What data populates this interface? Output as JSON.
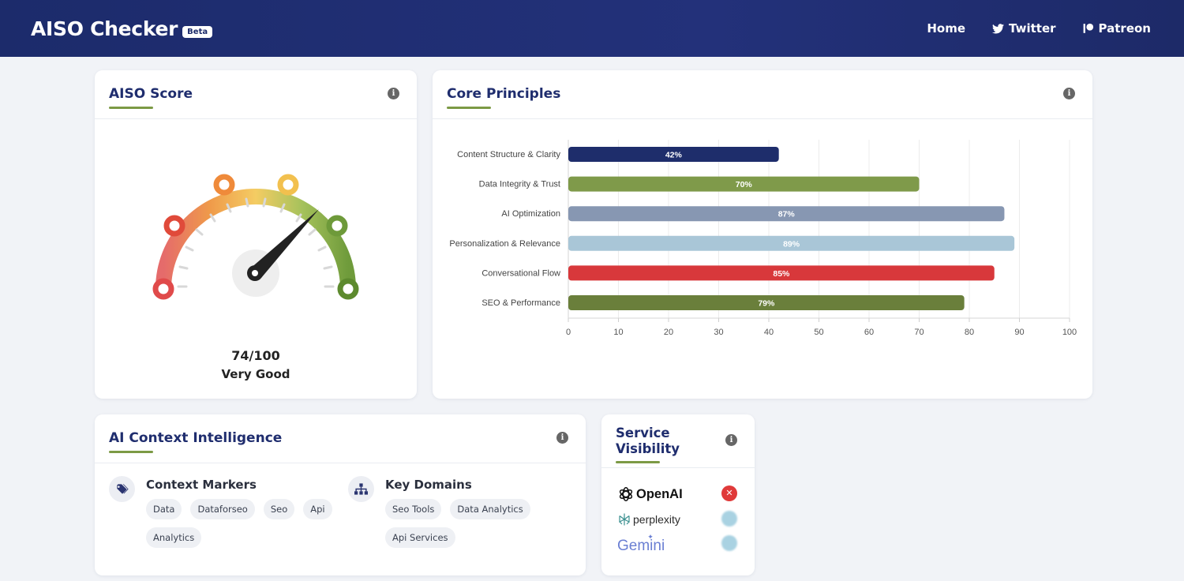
{
  "nav": {
    "brand": "AISO Checker",
    "badge": "Beta",
    "links": [
      {
        "label": "Home",
        "icon": "none"
      },
      {
        "label": "Twitter",
        "icon": "twitter-icon"
      },
      {
        "label": "Patreon",
        "icon": "patreon-icon"
      }
    ]
  },
  "score_card": {
    "title": "AISO Score",
    "info_icon": "i",
    "score_text": "74/100",
    "rating": "Very Good",
    "score_value": 74,
    "score_max": 100
  },
  "principles_card": {
    "title": "Core Principles",
    "info_icon": "i"
  },
  "chart_data": {
    "type": "bar",
    "orientation": "horizontal",
    "categories": [
      "Content Structure & Clarity",
      "Data Integrity & Trust",
      "AI Optimization",
      "Personalization & Relevance",
      "Conversational Flow",
      "SEO & Performance"
    ],
    "values": [
      42,
      70,
      87,
      89,
      85,
      79
    ],
    "value_labels": [
      "42%",
      "70%",
      "87%",
      "89%",
      "85%",
      "79%"
    ],
    "colors": [
      "#1e2d6b",
      "#7f9a4a",
      "#8797b2",
      "#a9c6d7",
      "#d8383b",
      "#6a7f3b"
    ],
    "xlim": [
      0,
      100
    ],
    "xticks": [
      "0",
      "10",
      "20",
      "30",
      "40",
      "50",
      "60",
      "70",
      "80",
      "90",
      "100"
    ],
    "grid": true
  },
  "context_card": {
    "title": "AI Context Intelligence",
    "info_icon": "i",
    "markers_title": "Context Markers",
    "markers_icon": "tag-icon",
    "markers": [
      "Data",
      "Dataforseo",
      "Seo",
      "Api",
      "Analytics"
    ],
    "domains_title": "Key Domains",
    "domains_icon": "hierarchy-icon",
    "domains": [
      "Seo Tools",
      "Data Analytics",
      "Api Services"
    ]
  },
  "service_card": {
    "title_line1": "Service",
    "title_line2": "Visibility",
    "info_icon": "i",
    "services": [
      {
        "name": "OpenAI",
        "status": "not-visible",
        "status_glyph": "✕"
      },
      {
        "name": "perplexity",
        "status": "pending",
        "status_glyph": ""
      },
      {
        "name": "Gemini",
        "status": "pending",
        "status_glyph": ""
      }
    ]
  },
  "colors": {
    "nav_bg": "#1c2b6b",
    "accent_green": "#7c9a45",
    "title_navy": "#1f2d6e"
  }
}
